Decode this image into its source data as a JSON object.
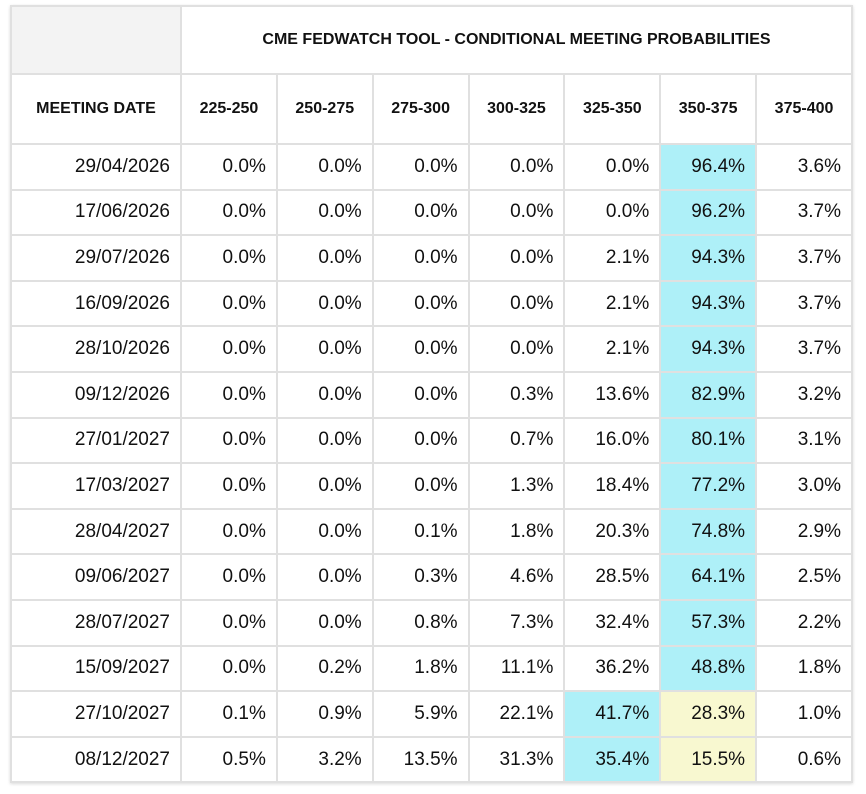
{
  "table": {
    "title": "CME FEDWATCH TOOL - CONDITIONAL MEETING PROBABILITIES",
    "headers": [
      "MEETING DATE",
      "225-250",
      "250-275",
      "275-300",
      "300-325",
      "325-350",
      "350-375",
      "375-400"
    ],
    "highlight_colors": {
      "max": "#aef0f8",
      "current": "#f8f8d0"
    },
    "rows": [
      {
        "date": "29/04/2026",
        "values": [
          "0.0%",
          "0.0%",
          "0.0%",
          "0.0%",
          "0.0%",
          "96.4%",
          "3.6%"
        ]
      },
      {
        "date": "17/06/2026",
        "values": [
          "0.0%",
          "0.0%",
          "0.0%",
          "0.0%",
          "0.0%",
          "96.2%",
          "3.7%"
        ]
      },
      {
        "date": "29/07/2026",
        "values": [
          "0.0%",
          "0.0%",
          "0.0%",
          "0.0%",
          "2.1%",
          "94.3%",
          "3.7%"
        ]
      },
      {
        "date": "16/09/2026",
        "values": [
          "0.0%",
          "0.0%",
          "0.0%",
          "0.0%",
          "2.1%",
          "94.3%",
          "3.7%"
        ]
      },
      {
        "date": "28/10/2026",
        "values": [
          "0.0%",
          "0.0%",
          "0.0%",
          "0.0%",
          "2.1%",
          "94.3%",
          "3.7%"
        ]
      },
      {
        "date": "09/12/2026",
        "values": [
          "0.0%",
          "0.0%",
          "0.0%",
          "0.3%",
          "13.6%",
          "82.9%",
          "3.2%"
        ]
      },
      {
        "date": "27/01/2027",
        "values": [
          "0.0%",
          "0.0%",
          "0.0%",
          "0.7%",
          "16.0%",
          "80.1%",
          "3.1%"
        ]
      },
      {
        "date": "17/03/2027",
        "values": [
          "0.0%",
          "0.0%",
          "0.0%",
          "1.3%",
          "18.4%",
          "77.2%",
          "3.0%"
        ]
      },
      {
        "date": "28/04/2027",
        "values": [
          "0.0%",
          "0.0%",
          "0.1%",
          "1.8%",
          "20.3%",
          "74.8%",
          "2.9%"
        ]
      },
      {
        "date": "09/06/2027",
        "values": [
          "0.0%",
          "0.0%",
          "0.3%",
          "4.6%",
          "28.5%",
          "64.1%",
          "2.5%"
        ]
      },
      {
        "date": "28/07/2027",
        "values": [
          "0.0%",
          "0.0%",
          "0.8%",
          "7.3%",
          "32.4%",
          "57.3%",
          "2.2%"
        ]
      },
      {
        "date": "15/09/2027",
        "values": [
          "0.0%",
          "0.2%",
          "1.8%",
          "11.1%",
          "36.2%",
          "48.8%",
          "1.8%"
        ]
      },
      {
        "date": "27/10/2027",
        "values": [
          "0.1%",
          "0.9%",
          "5.9%",
          "22.1%",
          "41.7%",
          "28.3%",
          "1.0%"
        ]
      },
      {
        "date": "08/12/2027",
        "values": [
          "0.5%",
          "3.2%",
          "13.5%",
          "31.3%",
          "35.4%",
          "15.5%",
          "0.6%"
        ]
      }
    ]
  }
}
